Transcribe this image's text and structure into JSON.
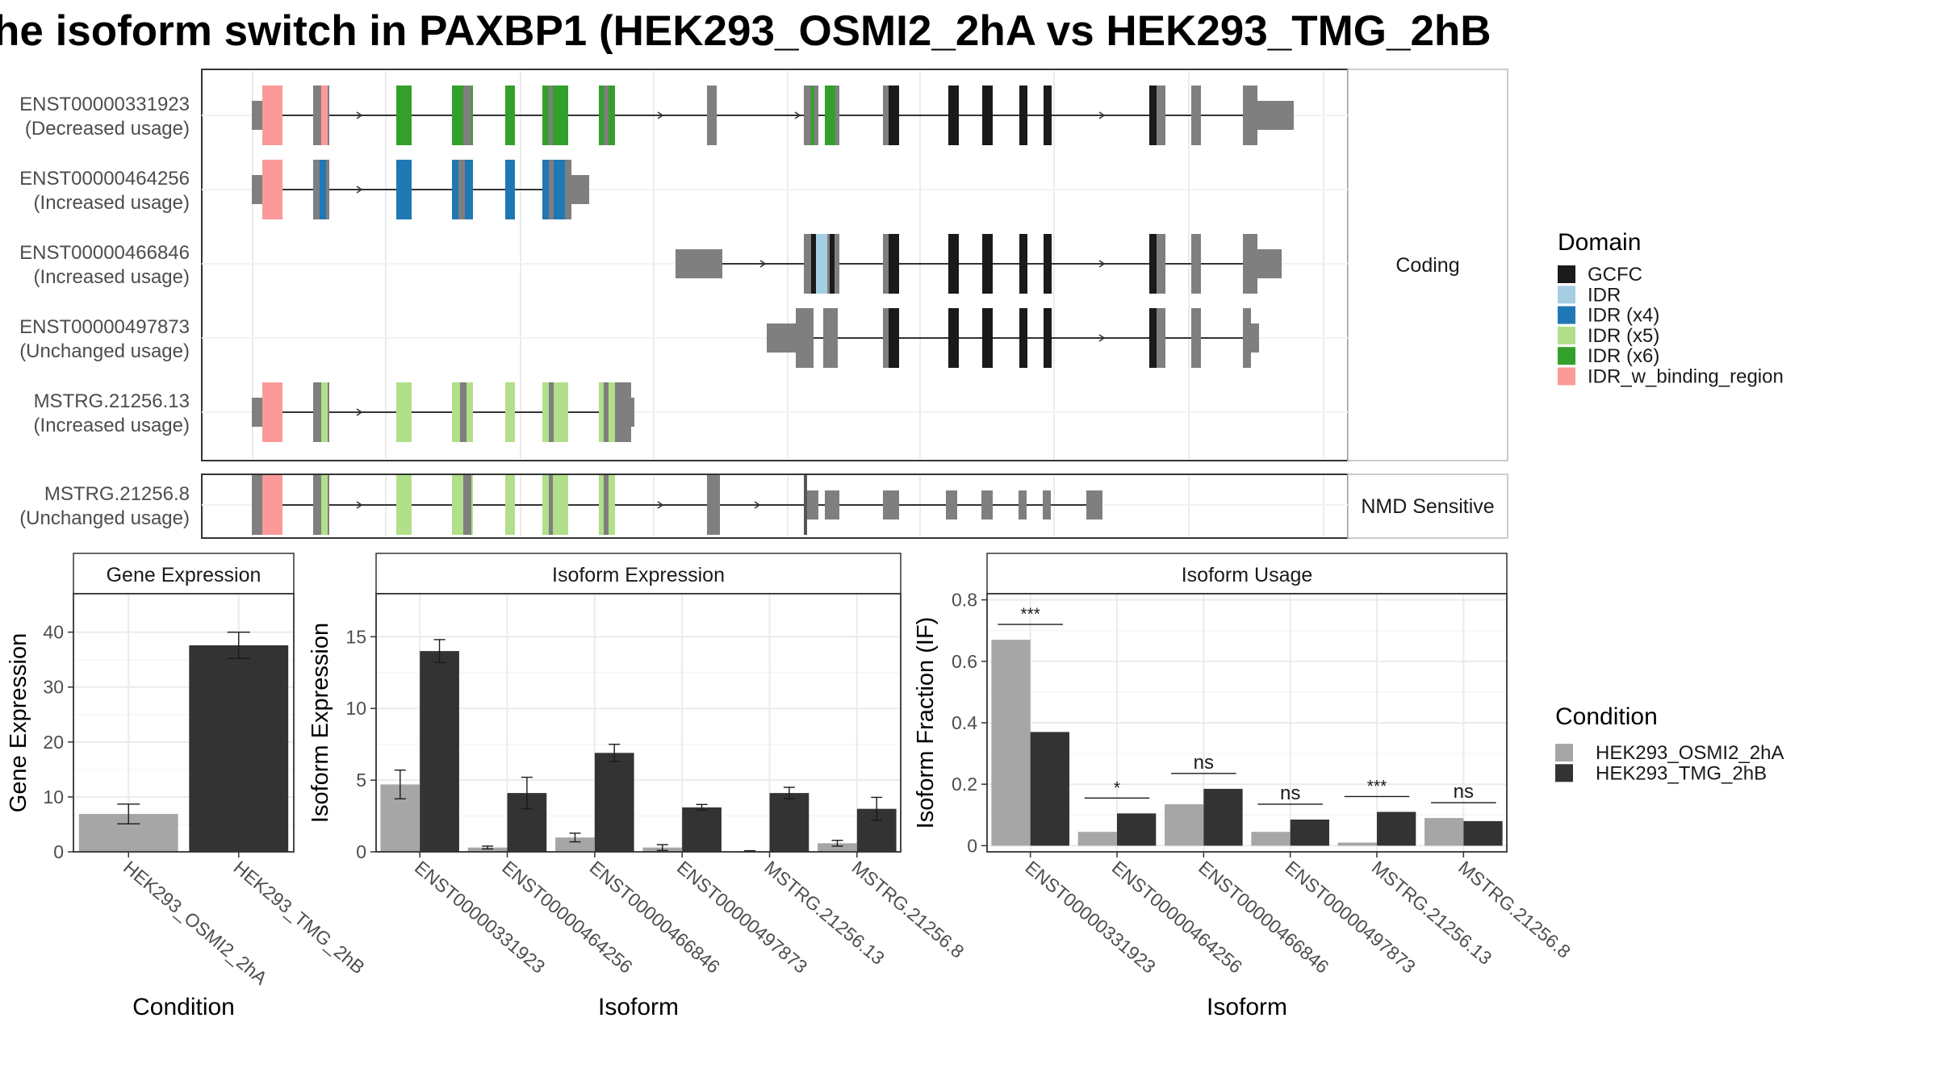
{
  "title": "he isoform switch in PAXBP1 (HEK293_OSMI2_2hA vs HEK293_TMG_2hB",
  "colors": {
    "bg_grey": "#7f7f7f",
    "GCFC": "#1a1a1a",
    "IDR": "#a6cee3",
    "IDR_x4": "#1f78b4",
    "IDR_x5": "#b2df8a",
    "IDR_x6": "#33a02c",
    "IDR_w_binding_region": "#fb9a99",
    "cond_a": "#a6a6a6",
    "cond_b": "#333333"
  },
  "structure": {
    "facet_coding": "Coding",
    "facet_nmd": "NMD Sensitive",
    "transcripts": [
      {
        "name": "ENST00000331923",
        "usage": "(Decreased usage)",
        "panel": "coding"
      },
      {
        "name": "ENST00000464256",
        "usage": "(Increased usage)",
        "panel": "coding"
      },
      {
        "name": "ENST00000466846",
        "usage": "(Increased usage)",
        "panel": "coding"
      },
      {
        "name": "ENST00000497873",
        "usage": "(Unchanged usage)",
        "panel": "coding"
      },
      {
        "name": "MSTRG.21256.13",
        "usage": "(Increased usage)",
        "panel": "coding"
      },
      {
        "name": "MSTRG.21256.8",
        "usage": "(Unchanged usage)",
        "panel": "nmd"
      }
    ]
  },
  "legend_domain": {
    "title": "Domain",
    "items": [
      {
        "label": "GCFC",
        "color": "#1a1a1a"
      },
      {
        "label": "IDR",
        "color": "#a6cee3"
      },
      {
        "label": "IDR (x4)",
        "color": "#1f78b4"
      },
      {
        "label": "IDR (x5)",
        "color": "#b2df8a"
      },
      {
        "label": "IDR (x6)",
        "color": "#33a02c"
      },
      {
        "label": "IDR_w_binding_region",
        "color": "#fb9a99"
      }
    ]
  },
  "legend_condition": {
    "title": "Condition",
    "items": [
      {
        "label": "HEK293_OSMI2_2hA",
        "color": "#a6a6a6"
      },
      {
        "label": "HEK293_TMG_2hB",
        "color": "#333333"
      }
    ]
  },
  "chart_data": [
    {
      "type": "bar",
      "title": "Gene Expression",
      "xlabel": "Condition",
      "ylabel": "Gene Expression",
      "ylim": [
        0,
        47
      ],
      "yticks": [
        0,
        10,
        20,
        30,
        40
      ],
      "categories": [
        "HEK293_OSMI2_2hA",
        "HEK293_TMG_2hB"
      ],
      "values": [
        6.9,
        37.6
      ],
      "errors": [
        1.8,
        2.4
      ],
      "colors": [
        "#a6a6a6",
        "#333333"
      ]
    },
    {
      "type": "bar",
      "title": "Isoform Expression",
      "xlabel": "Isoform",
      "ylabel": "Isoform Expression",
      "ylim": [
        0,
        18
      ],
      "yticks": [
        0,
        5,
        10,
        15
      ],
      "categories": [
        "ENST00000331923",
        "ENST00000464256",
        "ENST00000466846",
        "ENST00000497873",
        "MSTRG.21256.13",
        "MSTRG.21256.8"
      ],
      "series": [
        {
          "name": "HEK293_OSMI2_2hA",
          "values": [
            4.7,
            0.3,
            1.0,
            0.3,
            0.05,
            0.6
          ],
          "errors": [
            1.0,
            0.1,
            0.3,
            0.2,
            0.03,
            0.2
          ]
        },
        {
          "name": "HEK293_TMG_2hB",
          "values": [
            14.0,
            4.1,
            6.9,
            3.1,
            4.1,
            3.0
          ],
          "errors": [
            0.8,
            1.1,
            0.6,
            0.2,
            0.4,
            0.8
          ]
        }
      ]
    },
    {
      "type": "bar",
      "title": "Isoform Usage",
      "xlabel": "Isoform",
      "ylabel": "Isoform Fraction (IF)",
      "ylim": [
        -0.02,
        0.82
      ],
      "yticks": [
        0.0,
        0.2,
        0.4,
        0.6,
        0.8
      ],
      "categories": [
        "ENST00000331923",
        "ENST00000464256",
        "ENST00000466846",
        "ENST00000497873",
        "MSTRG.21256.13",
        "MSTRG.21256.8"
      ],
      "series": [
        {
          "name": "HEK293_OSMI2_2hA",
          "values": [
            0.67,
            0.045,
            0.135,
            0.045,
            0.01,
            0.09
          ]
        },
        {
          "name": "HEK293_TMG_2hB",
          "values": [
            0.37,
            0.105,
            0.185,
            0.085,
            0.11,
            0.08
          ]
        }
      ],
      "significance": [
        "***",
        "*",
        "ns",
        "ns",
        "***",
        "ns"
      ]
    }
  ]
}
